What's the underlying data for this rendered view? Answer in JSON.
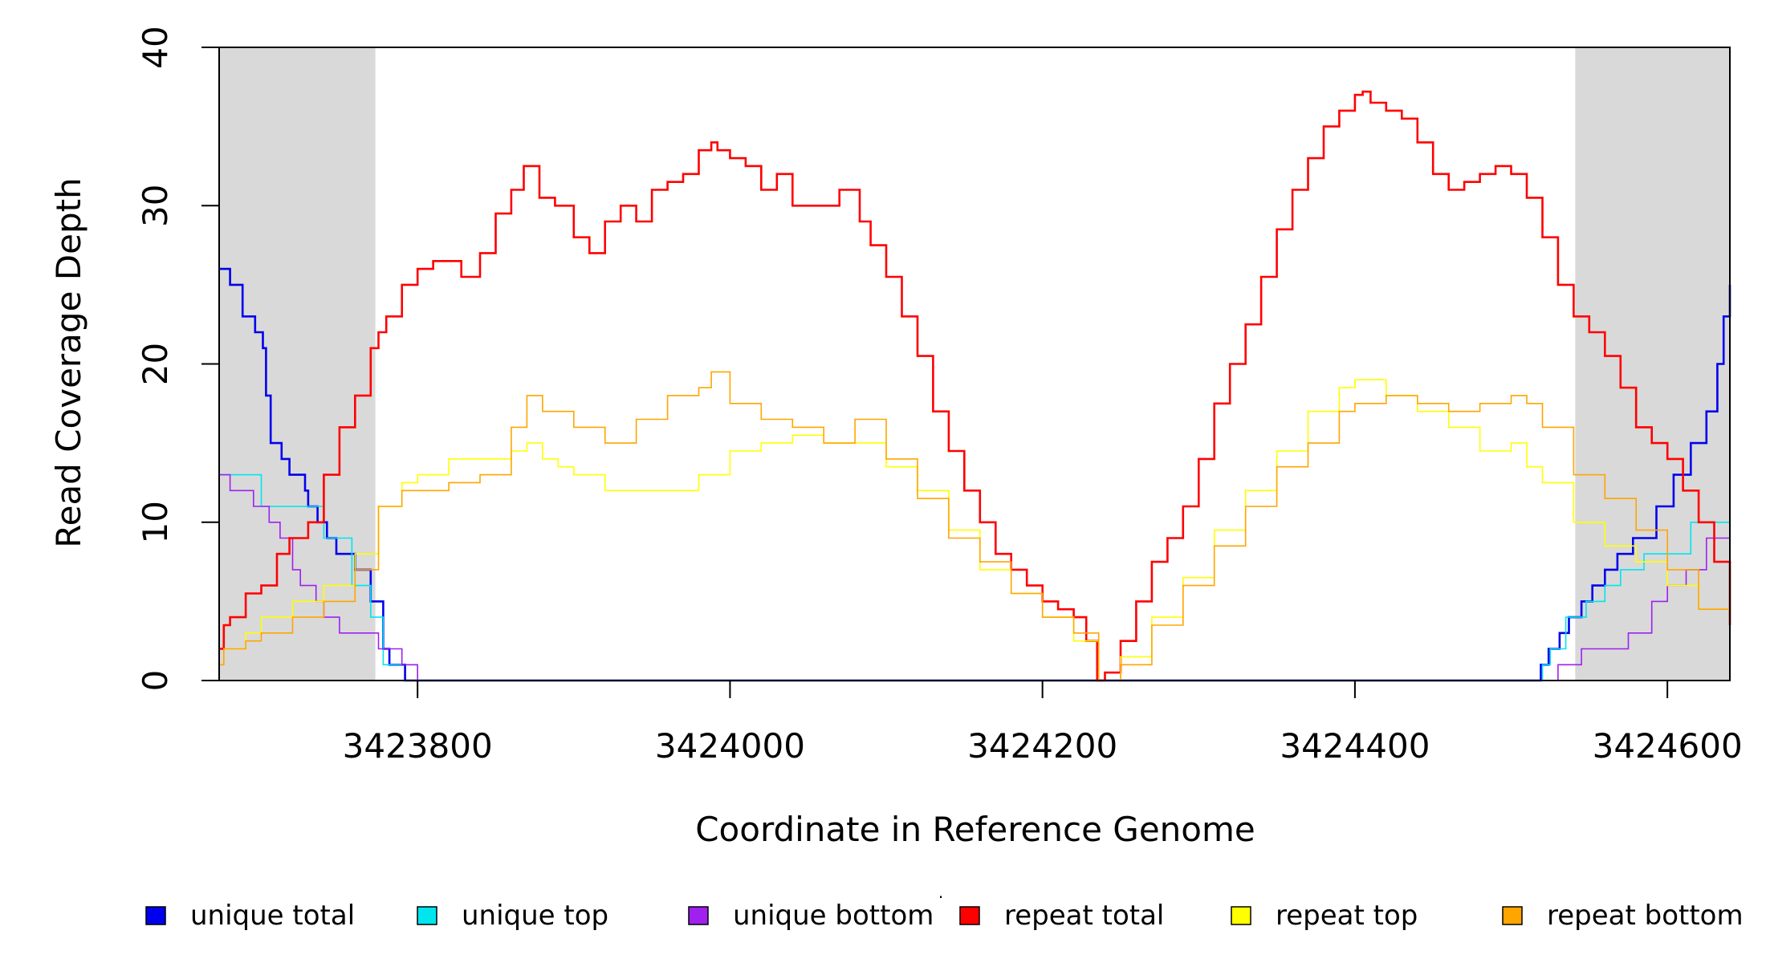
{
  "chart_data": {
    "type": "line",
    "title": "",
    "xlabel": "Coordinate in Reference Genome",
    "ylabel": "Read Coverage Depth",
    "xlim": [
      3423673,
      3424640
    ],
    "ylim": [
      0,
      40
    ],
    "grid": false,
    "legend_position": "bottom",
    "x_ticks": [
      3423800,
      3424000,
      3424200,
      3424400,
      3424600
    ],
    "x_tick_labels": [
      "3423800",
      "3424000",
      "3424200",
      "3424400",
      "3424600"
    ],
    "y_ticks": [
      0,
      10,
      20,
      30,
      40
    ],
    "y_tick_labels": [
      "0",
      "10",
      "20",
      "30",
      "40"
    ],
    "shaded_regions": [
      {
        "name": "left-flank",
        "x0": 3423673,
        "x1": 3423773
      },
      {
        "name": "right-flank",
        "x0": 3424541,
        "x1": 3424640
      }
    ],
    "series": [
      {
        "name": "unique total",
        "color": "#0000ee",
        "width": 2.6,
        "x": [
          3423673,
          3423680,
          3423688,
          3423696,
          3423701,
          3423703,
          3423706,
          3423713,
          3423718,
          3423728,
          3423730,
          3423736,
          3423742,
          3423748,
          3423760,
          3423770,
          3423778,
          3423782,
          3423792,
          3423800,
          3424513,
          3424519,
          3424524,
          3424531,
          3424537,
          3424545,
          3424552,
          3424560,
          3424568,
          3424578,
          3424593,
          3424604,
          3424615,
          3424625,
          3424632,
          3424636,
          3424640
        ],
        "values": [
          26,
          25,
          23,
          22,
          21,
          18,
          15,
          14,
          13,
          12,
          11,
          10,
          9,
          8,
          7,
          5,
          2,
          1,
          0,
          0,
          0,
          1,
          2,
          3,
          4,
          5,
          6,
          7,
          8,
          9,
          11,
          13,
          15,
          17,
          20,
          23,
          25
        ]
      },
      {
        "name": "unique top",
        "color": "#00e5ee",
        "width": 1.6,
        "x": [
          3423673,
          3423680,
          3423700,
          3423740,
          3423758,
          3423770,
          3423778,
          3423800,
          3424516,
          3424520,
          3424525,
          3424535,
          3424548,
          3424560,
          3424570,
          3424585,
          3424615,
          3424640
        ],
        "values": [
          13,
          13,
          11,
          9,
          6,
          4,
          1,
          0,
          0,
          1,
          2,
          4,
          5,
          6,
          7,
          8,
          10,
          13
        ]
      },
      {
        "name": "unique bottom",
        "color": "#a020f0",
        "width": 1.6,
        "x": [
          3423673,
          3423680,
          3423695,
          3423705,
          3423712,
          3423720,
          3423725,
          3423735,
          3423740,
          3423750,
          3423775,
          3423790,
          3423800,
          3424520,
          3424530,
          3424545,
          3424575,
          3424590,
          3424600,
          3424612,
          3424625,
          3424640
        ],
        "values": [
          13,
          12,
          11,
          10,
          9,
          7,
          6,
          5,
          4,
          3,
          2,
          1,
          0,
          0,
          1,
          2,
          3,
          5,
          6,
          7,
          9,
          12
        ]
      },
      {
        "name": "repeat total",
        "color": "#ff0000",
        "width": 2.6,
        "x": [
          3423673,
          3423676,
          3423680,
          3423690,
          3423700,
          3423710,
          3423718,
          3423730,
          3423740,
          3423750,
          3423760,
          3423770,
          3423775,
          3423780,
          3423790,
          3423800,
          3423810,
          3423820,
          3423828,
          3423840,
          3423850,
          3423860,
          3423868,
          3423878,
          3423888,
          3423900,
          3423910,
          3423920,
          3423930,
          3423940,
          3423950,
          3423960,
          3423970,
          3423980,
          3423988,
          3423992,
          3424000,
          3424010,
          3424020,
          3424030,
          3424040,
          3424050,
          3424060,
          3424070,
          3424078,
          3424083,
          3424090,
          3424100,
          3424110,
          3424120,
          3424130,
          3424140,
          3424150,
          3424160,
          3424170,
          3424180,
          3424190,
          3424200,
          3424210,
          3424220,
          3424228,
          3424235,
          3424240,
          3424250,
          3424260,
          3424270,
          3424280,
          3424290,
          3424300,
          3424310,
          3424320,
          3424330,
          3424340,
          3424350,
          3424360,
          3424370,
          3424380,
          3424390,
          3424400,
          3424405,
          3424410,
          3424420,
          3424430,
          3424440,
          3424450,
          3424460,
          3424470,
          3424480,
          3424490,
          3424500,
          3424510,
          3424520,
          3424530,
          3424540,
          3424550,
          3424560,
          3424570,
          3424580,
          3424590,
          3424600,
          3424610,
          3424620,
          3424630,
          3424640
        ],
        "values": [
          2,
          3.5,
          4,
          5.5,
          6,
          8,
          9,
          10,
          13,
          16,
          18,
          21,
          22,
          23,
          25,
          26,
          26.5,
          26.5,
          25.5,
          27,
          29.5,
          31,
          32.5,
          30.5,
          30,
          28,
          27,
          29,
          30,
          29,
          31,
          31.5,
          32,
          33.5,
          34,
          33.5,
          33,
          32.5,
          31,
          32,
          30,
          30,
          30,
          31,
          31,
          29,
          27.5,
          25.5,
          23,
          20.5,
          17,
          14.5,
          12,
          10,
          8,
          7,
          6,
          5,
          4.5,
          4,
          2.5,
          0,
          0.5,
          2.5,
          5,
          7.5,
          9,
          11,
          14,
          17.5,
          20,
          22.5,
          25.5,
          28.5,
          31,
          33,
          35,
          36,
          37,
          37.2,
          36.5,
          36,
          35.5,
          34,
          32,
          31,
          31.5,
          32,
          32.5,
          32,
          30.5,
          28,
          25,
          23,
          22,
          20.5,
          18.5,
          16,
          15,
          14,
          12,
          10,
          7.5,
          3.5
        ]
      },
      {
        "name": "repeat top",
        "color": "#ffff00",
        "width": 1.6,
        "x": [
          3423673,
          3423676,
          3423690,
          3423700,
          3423720,
          3423740,
          3423760,
          3423775,
          3423790,
          3423800,
          3423820,
          3423840,
          3423860,
          3423870,
          3423880,
          3423890,
          3423900,
          3423920,
          3423940,
          3423960,
          3423980,
          3424000,
          3424020,
          3424040,
          3424060,
          3424080,
          3424100,
          3424120,
          3424140,
          3424160,
          3424180,
          3424200,
          3424220,
          3424236,
          3424250,
          3424270,
          3424290,
          3424310,
          3424330,
          3424350,
          3424370,
          3424390,
          3424400,
          3424410,
          3424420,
          3424440,
          3424460,
          3424480,
          3424500,
          3424510,
          3424520,
          3424540,
          3424560,
          3424580,
          3424600,
          3424620,
          3424640
        ],
        "values": [
          1,
          2,
          3,
          4,
          5,
          6,
          8,
          11,
          12.5,
          13,
          14,
          14,
          14.5,
          15,
          14,
          13.5,
          13,
          12,
          12,
          12,
          13,
          14.5,
          15,
          15.5,
          15,
          15,
          13.5,
          12,
          9.5,
          7,
          5.5,
          4,
          2.5,
          0,
          1.5,
          4,
          6.5,
          9.5,
          12,
          14.5,
          17,
          18.5,
          19,
          19,
          18,
          17,
          16,
          14.5,
          15,
          13.5,
          12.5,
          10,
          8.5,
          7.5,
          6,
          4.5,
          2
        ]
      },
      {
        "name": "repeat bottom",
        "color": "#ffa500",
        "width": 1.6,
        "x": [
          3423673,
          3423676,
          3423690,
          3423700,
          3423720,
          3423740,
          3423760,
          3423775,
          3423790,
          3423800,
          3423820,
          3423840,
          3423860,
          3423870,
          3423880,
          3423890,
          3423900,
          3423920,
          3423940,
          3423960,
          3423980,
          3423988,
          3424000,
          3424020,
          3424040,
          3424060,
          3424080,
          3424100,
          3424120,
          3424140,
          3424160,
          3424180,
          3424200,
          3424220,
          3424236,
          3424250,
          3424270,
          3424290,
          3424310,
          3424330,
          3424350,
          3424370,
          3424390,
          3424400,
          3424410,
          3424420,
          3424440,
          3424460,
          3424480,
          3424500,
          3424510,
          3424520,
          3424540,
          3424560,
          3424580,
          3424600,
          3424620,
          3424640
        ],
        "values": [
          1,
          2,
          2.5,
          3,
          4,
          5,
          7,
          11,
          12,
          12,
          12.5,
          13,
          16,
          18,
          17,
          17,
          16,
          15,
          16.5,
          18,
          18.5,
          19.5,
          17.5,
          16.5,
          16,
          15,
          16.5,
          14,
          11.5,
          9,
          7.5,
          5.5,
          4,
          3,
          0,
          1,
          3.5,
          6,
          8.5,
          11,
          13.5,
          15,
          17,
          17.5,
          17.5,
          18,
          17.5,
          17,
          17.5,
          18,
          17.5,
          16,
          13,
          11.5,
          9.5,
          7,
          4.5,
          1.5
        ]
      }
    ],
    "legend": [
      "unique total",
      "unique top",
      "unique bottom",
      "repeat total",
      "repeat top",
      "repeat bottom"
    ]
  },
  "legend_separator": "·"
}
